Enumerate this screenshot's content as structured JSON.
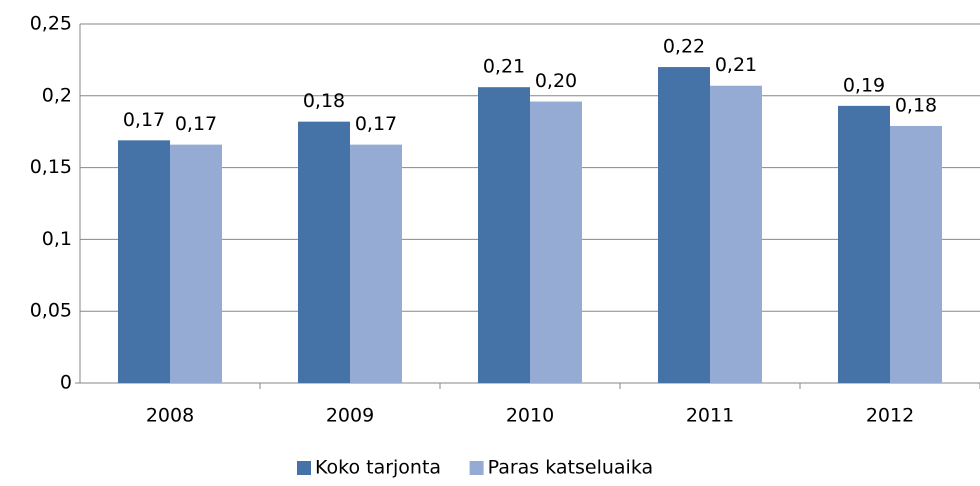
{
  "chart_data": {
    "type": "bar",
    "categories": [
      "2008",
      "2009",
      "2010",
      "2011",
      "2012"
    ],
    "series": [
      {
        "name": "Koko tarjonta",
        "color": "#4572a7",
        "values": [
          0.169,
          0.182,
          0.206,
          0.22,
          0.193
        ],
        "value_labels": [
          "0,17",
          "0,18",
          "0,21",
          "0,22",
          "0,19"
        ]
      },
      {
        "name": "Paras katseluaika",
        "color": "#95abd3",
        "values": [
          0.166,
          0.166,
          0.196,
          0.207,
          0.179
        ],
        "value_labels": [
          "0,17",
          "0,17",
          "0,20",
          "0,21",
          "0,18"
        ]
      }
    ],
    "ylim": [
      0,
      0.25
    ],
    "yticks": [
      0,
      {
        "value": 0.05,
        "label": "0,05"
      },
      {
        "value": 0.1,
        "label": "0,1"
      },
      {
        "value": 0.15,
        "label": "0,15"
      },
      {
        "value": 0.2,
        "label": "0,2"
      },
      {
        "value": 0.25,
        "label": "0,25"
      }
    ],
    "grid": true,
    "legend": "bottom"
  }
}
